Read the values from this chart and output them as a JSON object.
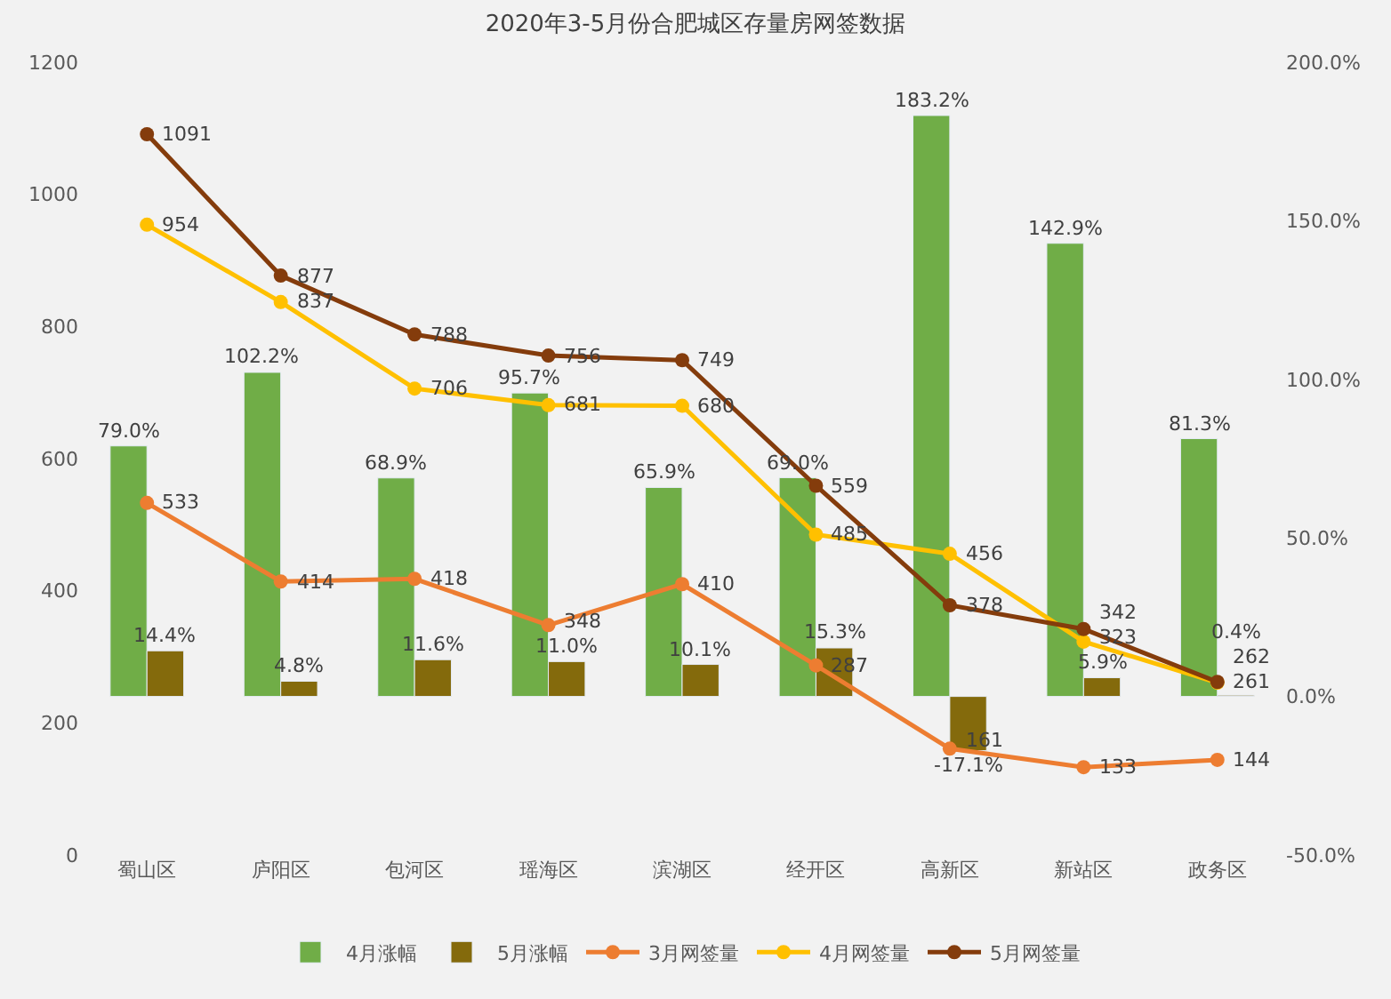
{
  "chart_data": {
    "type": "bar",
    "title": "2020年3-5月份合肥城区存量房网签数据",
    "categories": [
      "蜀山区",
      "庐阳区",
      "包河区",
      "瑶海区",
      "滨湖区",
      "经开区",
      "高新区",
      "新站区",
      "政务区"
    ],
    "series": [
      {
        "name": "4月涨幅",
        "axis": "y2",
        "color": "#70ad47",
        "values": [
          79.0,
          102.2,
          68.9,
          95.7,
          65.9,
          69.0,
          183.2,
          142.9,
          81.3
        ],
        "value_labels": [
          "79.0%",
          "102.2%",
          "68.9%",
          "95.7%",
          "65.9%",
          "69.0%",
          "183.2%",
          "142.9%",
          "81.3%"
        ]
      },
      {
        "name": "5月涨幅",
        "axis": "y2",
        "color": "#846a0c",
        "values": [
          14.4,
          4.8,
          11.6,
          11.0,
          10.1,
          15.3,
          -17.1,
          5.9,
          0.4
        ],
        "value_labels": [
          "14.4%",
          "4.8%",
          "11.6%",
          "11.0%",
          "10.1%",
          "15.3%",
          "-17.1%",
          "5.9%",
          "0.4%"
        ]
      },
      {
        "name": "3月网签量",
        "type": "line",
        "color": "#ed7d31",
        "values": [
          533,
          414,
          418,
          348,
          410,
          287,
          161,
          133,
          144
        ],
        "value_labels": [
          "533",
          "414",
          "418",
          "348",
          "410",
          "287",
          "161",
          "133",
          "144"
        ]
      },
      {
        "name": "4月网签量",
        "type": "line",
        "color": "#ffc000",
        "values": [
          954,
          837,
          706,
          681,
          680,
          485,
          456,
          323,
          261
        ],
        "value_labels": [
          "954",
          "837",
          "706",
          "681",
          "680",
          "485",
          "456",
          "323",
          "261"
        ]
      },
      {
        "name": "5月网签量",
        "type": "line",
        "color": "#843c0c",
        "values": [
          1091,
          877,
          788,
          756,
          749,
          559,
          378,
          342,
          262
        ],
        "value_labels": [
          "1091",
          "877",
          "788",
          "756",
          "749",
          "559",
          "378",
          "342",
          "262"
        ]
      }
    ],
    "ylim": [
      0,
      1200
    ],
    "yticks": [
      0,
      200,
      400,
      600,
      800,
      1000,
      1200
    ],
    "y2lim": [
      -50,
      200
    ],
    "y2ticks": [
      {
        "value": -50,
        "label": "-50.0%"
      },
      {
        "value": 0,
        "label": "0.0%"
      },
      {
        "value": 50,
        "label": "50.0%"
      },
      {
        "value": 100,
        "label": "100.0%"
      },
      {
        "value": 150,
        "label": "150.0%"
      },
      {
        "value": 200,
        "label": "200.0%"
      }
    ],
    "marker": "circle",
    "grid": false,
    "legend": "bottom"
  }
}
